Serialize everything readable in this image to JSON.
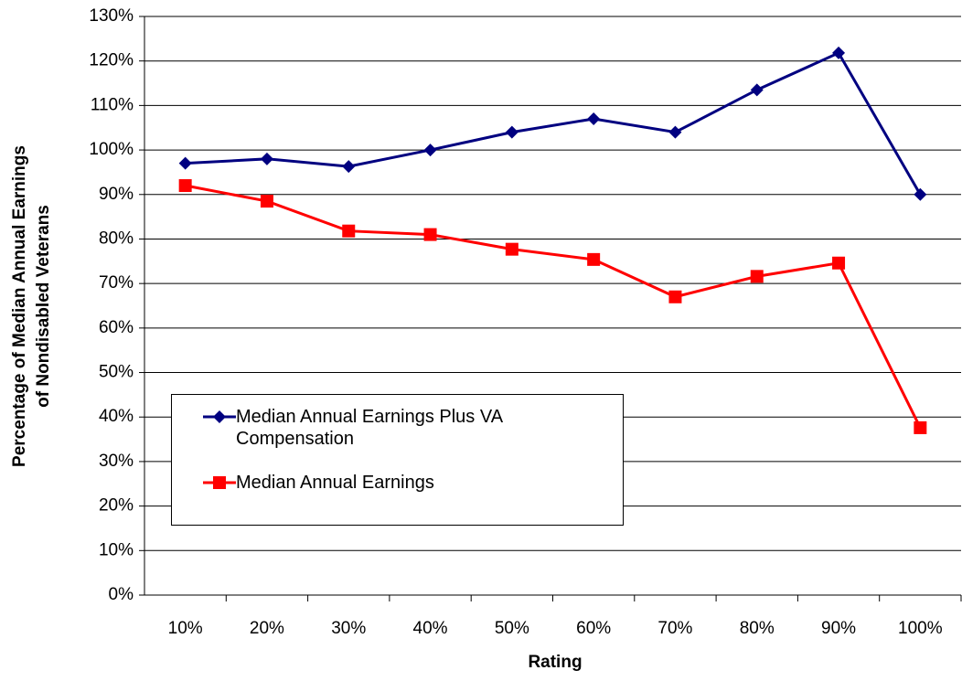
{
  "chart_data": {
    "type": "line",
    "x_label": "Rating",
    "y_label": [
      "Percentage of Median Annual Earnings",
      "of Nondisabled Veterans"
    ],
    "categories": [
      "10%",
      "20%",
      "30%",
      "40%",
      "50%",
      "60%",
      "70%",
      "80%",
      "90%",
      "100%"
    ],
    "series": [
      {
        "name": "Median Annual Earnings Plus VA Compensation",
        "color": "#000080",
        "marker": "diamond",
        "values": [
          97,
          98,
          96.3,
          100,
          104,
          107,
          104,
          113.5,
          121.8,
          90
        ]
      },
      {
        "name": "Median Annual Earnings",
        "color": "#ff0000",
        "marker": "square",
        "values": [
          92,
          88.5,
          81.8,
          81,
          77.7,
          75.4,
          67,
          71.6,
          74.6,
          37.6
        ]
      }
    ],
    "ylim": [
      0,
      130
    ],
    "yticks": [
      {
        "value": 0,
        "label": "0%"
      },
      {
        "value": 10,
        "label": "10%"
      },
      {
        "value": 20,
        "label": "20%"
      },
      {
        "value": 30,
        "label": "30%"
      },
      {
        "value": 40,
        "label": "40%"
      },
      {
        "value": 50,
        "label": "50%"
      },
      {
        "value": 60,
        "label": "60%"
      },
      {
        "value": 70,
        "label": "70%"
      },
      {
        "value": 80,
        "label": "80%"
      },
      {
        "value": 90,
        "label": "90%"
      },
      {
        "value": 100,
        "label": "100%"
      },
      {
        "value": 110,
        "label": "110%"
      },
      {
        "value": 120,
        "label": "120%"
      },
      {
        "value": 130,
        "label": "130%"
      }
    ],
    "grid": true
  }
}
